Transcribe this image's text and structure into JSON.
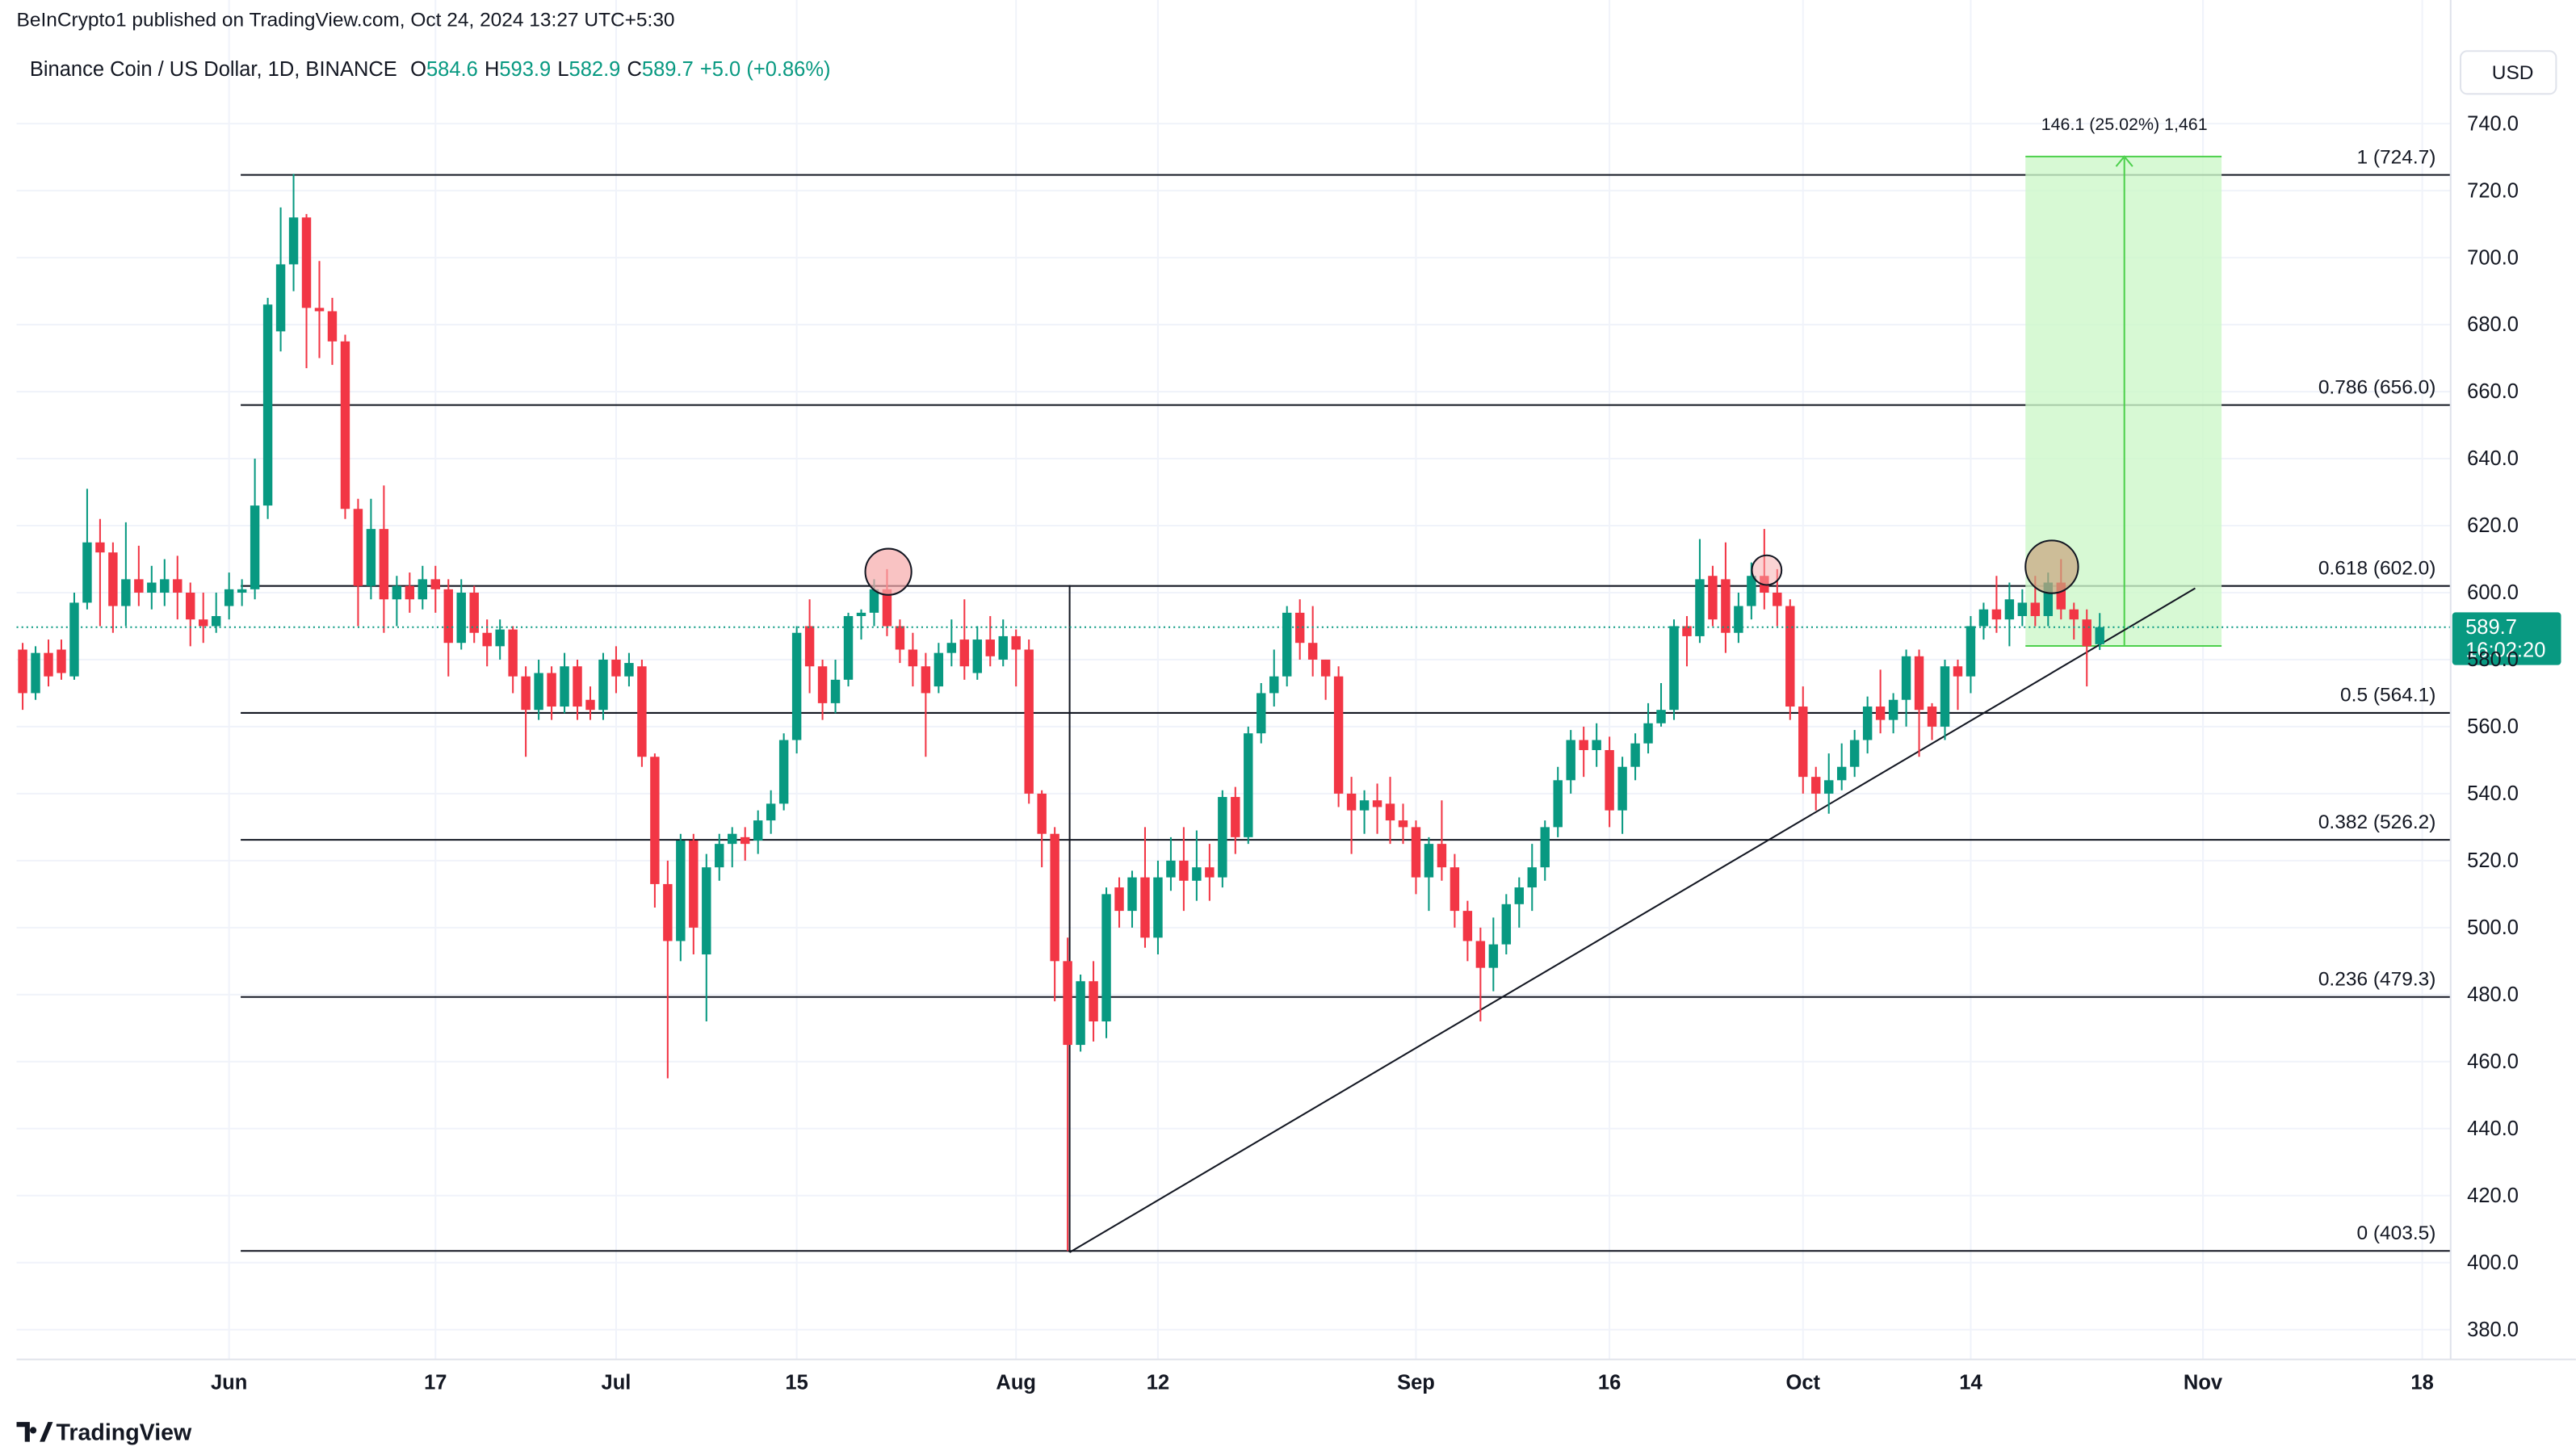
{
  "header": {
    "publisher": "BeInCrypto1 published on TradingView.com, Oct 24, 2024 13:27 UTC+5:30",
    "brand": "TradingView"
  },
  "chart_data": {
    "type": "candlestick",
    "title": "Binance Coin / US Dollar, 1D, BINANCE",
    "ohlc_header": [
      {
        "key": "O",
        "value": "584.6"
      },
      {
        "key": "H",
        "value": "593.9"
      },
      {
        "key": "L",
        "value": "582.9"
      },
      {
        "key": "C",
        "value": "589.7"
      }
    ],
    "change": "+5.0 (+0.86%)",
    "currency": "USD",
    "up_color": "#089981",
    "down_color": "#f23645",
    "ohlc": [
      [
        583,
        585,
        565,
        570
      ],
      [
        570,
        584,
        568,
        582
      ],
      [
        582,
        586,
        572,
        575
      ],
      [
        583,
        586,
        574,
        576
      ],
      [
        575,
        600,
        574,
        597
      ],
      [
        597,
        631,
        595,
        615
      ],
      [
        615,
        622,
        590,
        612
      ],
      [
        612,
        615,
        588,
        596
      ],
      [
        596,
        621,
        590,
        604
      ],
      [
        604,
        614,
        596,
        600
      ],
      [
        600,
        608,
        595,
        603
      ],
      [
        600,
        610,
        596,
        604
      ],
      [
        604,
        611,
        592,
        600
      ],
      [
        600,
        603,
        584,
        592
      ],
      [
        592,
        600,
        585,
        590
      ],
      [
        590,
        600,
        588,
        593
      ],
      [
        596,
        606,
        592,
        601
      ],
      [
        600,
        604,
        596,
        601
      ],
      [
        601,
        640,
        598,
        626
      ],
      [
        626,
        688,
        622,
        686
      ],
      [
        678,
        715,
        672,
        698
      ],
      [
        698,
        725,
        690,
        712
      ],
      [
        712,
        713,
        667,
        685
      ],
      [
        685,
        699,
        670,
        684
      ],
      [
        684,
        688,
        668,
        675
      ],
      [
        675,
        677,
        622,
        625
      ],
      [
        625,
        628,
        590,
        602
      ],
      [
        602,
        628,
        598,
        619
      ],
      [
        619,
        632,
        588,
        598
      ],
      [
        598,
        605,
        590,
        602
      ],
      [
        602,
        606,
        594,
        598
      ],
      [
        598,
        608,
        595,
        604
      ],
      [
        604,
        608,
        594,
        601
      ],
      [
        601,
        604,
        575,
        585
      ],
      [
        585,
        604,
        583,
        600
      ],
      [
        600,
        602,
        585,
        588
      ],
      [
        588,
        592,
        578,
        584
      ],
      [
        584,
        592,
        580,
        589
      ],
      [
        589,
        590,
        570,
        575
      ],
      [
        575,
        578,
        551,
        565
      ],
      [
        565,
        580,
        562,
        576
      ],
      [
        576,
        578,
        562,
        566
      ],
      [
        566,
        582,
        564,
        578
      ],
      [
        578,
        580,
        562,
        566
      ],
      [
        568,
        572,
        562,
        565
      ],
      [
        565,
        582,
        562,
        580
      ],
      [
        580,
        584,
        570,
        575
      ],
      [
        575,
        582,
        572,
        579
      ],
      [
        578,
        580,
        548,
        551
      ],
      [
        551,
        552,
        506,
        513
      ],
      [
        513,
        520,
        455,
        496
      ],
      [
        496,
        528,
        490,
        526
      ],
      [
        526,
        528,
        492,
        500
      ],
      [
        492,
        522,
        472,
        518
      ],
      [
        518,
        528,
        514,
        525
      ],
      [
        525,
        530,
        518,
        528
      ],
      [
        527,
        530,
        520,
        525
      ],
      [
        526,
        535,
        522,
        532
      ],
      [
        532,
        541,
        528,
        537
      ],
      [
        537,
        558,
        535,
        556
      ],
      [
        556,
        590,
        552,
        588
      ],
      [
        590,
        598,
        570,
        578
      ],
      [
        578,
        580,
        562,
        567
      ],
      [
        567,
        580,
        564,
        574
      ],
      [
        574,
        594,
        572,
        593
      ],
      [
        593,
        595,
        586,
        594
      ],
      [
        594,
        604,
        590,
        601
      ],
      [
        601,
        607,
        587,
        590
      ],
      [
        590,
        592,
        579,
        583
      ],
      [
        583,
        588,
        572,
        578
      ],
      [
        578,
        582,
        551,
        570
      ],
      [
        572,
        585,
        570,
        582
      ],
      [
        582,
        592,
        578,
        585
      ],
      [
        586,
        598,
        574,
        578
      ],
      [
        576,
        590,
        574,
        586
      ],
      [
        586,
        593,
        578,
        581
      ],
      [
        580,
        592,
        578,
        587
      ],
      [
        587,
        589,
        572,
        583
      ],
      [
        583,
        586,
        537,
        540
      ],
      [
        540,
        541,
        518,
        528
      ],
      [
        528,
        530,
        478,
        490
      ],
      [
        490,
        497,
        403.5,
        465
      ],
      [
        465,
        486,
        463,
        484
      ],
      [
        484,
        490,
        466,
        472
      ],
      [
        472,
        512,
        467,
        510
      ],
      [
        512,
        515,
        500,
        505
      ],
      [
        505,
        517,
        500,
        515
      ],
      [
        515,
        530,
        494,
        497
      ],
      [
        497,
        520,
        492,
        515
      ],
      [
        515,
        527,
        511,
        520
      ],
      [
        520,
        530,
        505,
        514
      ],
      [
        514,
        529,
        508,
        518
      ],
      [
        518,
        525,
        508,
        515
      ],
      [
        515,
        541,
        512,
        539
      ],
      [
        539,
        542,
        522,
        527
      ],
      [
        527,
        560,
        525,
        558
      ],
      [
        558,
        573,
        555,
        570
      ],
      [
        570,
        583,
        566,
        575
      ],
      [
        575,
        596,
        572,
        594
      ],
      [
        594,
        598,
        580,
        585
      ],
      [
        585,
        596,
        575,
        580
      ],
      [
        580,
        580,
        568,
        575
      ],
      [
        575,
        578,
        536,
        540
      ],
      [
        540,
        545,
        522,
        535
      ],
      [
        535,
        541,
        528,
        538
      ],
      [
        538,
        543,
        528,
        536
      ],
      [
        537,
        545,
        525,
        532
      ],
      [
        532,
        537,
        525,
        530
      ],
      [
        530,
        532,
        510,
        515
      ],
      [
        515,
        527,
        505,
        525
      ],
      [
        525,
        538,
        514,
        518
      ],
      [
        518,
        522,
        500,
        505
      ],
      [
        505,
        508,
        490,
        496
      ],
      [
        496,
        500,
        472,
        488
      ],
      [
        488,
        503,
        481,
        495
      ],
      [
        495,
        510,
        492,
        507
      ],
      [
        507,
        515,
        500,
        512
      ],
      [
        512,
        525,
        505,
        518
      ],
      [
        518,
        532,
        514,
        530
      ],
      [
        530,
        548,
        527,
        544
      ],
      [
        544,
        559,
        540,
        556
      ],
      [
        556,
        560,
        545,
        553
      ],
      [
        553,
        561,
        548,
        556
      ],
      [
        553,
        557,
        530,
        535
      ],
      [
        535,
        551,
        528,
        548
      ],
      [
        548,
        558,
        544,
        555
      ],
      [
        555,
        567,
        552,
        561
      ],
      [
        561,
        573,
        560,
        565
      ],
      [
        565,
        592,
        562,
        590
      ],
      [
        590,
        593,
        578,
        587
      ],
      [
        587,
        616,
        585,
        604
      ],
      [
        605,
        608,
        590,
        592
      ],
      [
        604,
        615,
        582,
        588
      ],
      [
        588,
        600,
        585,
        596
      ],
      [
        596,
        609,
        592,
        605
      ],
      [
        605,
        619,
        595,
        600
      ],
      [
        600,
        607,
        590,
        596
      ],
      [
        596,
        598,
        562,
        566
      ],
      [
        566,
        572,
        540,
        545
      ],
      [
        545,
        548,
        535,
        540
      ],
      [
        540,
        552,
        534,
        544
      ],
      [
        544,
        555,
        541,
        548
      ],
      [
        548,
        559,
        545,
        556
      ],
      [
        556,
        569,
        552,
        566
      ],
      [
        566,
        577,
        558,
        562
      ],
      [
        562,
        570,
        558,
        568
      ],
      [
        568,
        583,
        560,
        581
      ],
      [
        581,
        583,
        551,
        565
      ],
      [
        566,
        567,
        556,
        560
      ],
      [
        560,
        580,
        556,
        578
      ],
      [
        578,
        580,
        565,
        575
      ],
      [
        575,
        593,
        570,
        590
      ],
      [
        590,
        597,
        586,
        595
      ],
      [
        595,
        605,
        588,
        592
      ],
      [
        592,
        603,
        584,
        598
      ],
      [
        593,
        601,
        590,
        597
      ],
      [
        597,
        605,
        590,
        593
      ],
      [
        593,
        606,
        590,
        603
      ],
      [
        603,
        610,
        592,
        595
      ],
      [
        595,
        597,
        586,
        592
      ],
      [
        592,
        595,
        572,
        584
      ],
      [
        584.6,
        593.9,
        582.9,
        589.7
      ]
    ],
    "xlim": [
      -0.47,
      188.2
    ],
    "xticks": [
      {
        "value": 16,
        "label": "Jun"
      },
      {
        "value": 32,
        "label": "17"
      },
      {
        "value": 46,
        "label": "Jul"
      },
      {
        "value": 60,
        "label": "15"
      },
      {
        "value": 77,
        "label": "Aug"
      },
      {
        "value": 88,
        "label": "12"
      },
      {
        "value": 108,
        "label": "Sep"
      },
      {
        "value": 123,
        "label": "16"
      },
      {
        "value": 138,
        "label": "Oct"
      },
      {
        "value": 151,
        "label": "14"
      },
      {
        "value": 169,
        "label": "Nov"
      },
      {
        "value": 186,
        "label": "18"
      }
    ],
    "ylim": [
      371.1,
      747.4
    ],
    "yticks": [
      {
        "value": 380,
        "label": "380.0"
      },
      {
        "value": 400,
        "label": "400.0"
      },
      {
        "value": 420,
        "label": "420.0"
      },
      {
        "value": 440,
        "label": "440.0"
      },
      {
        "value": 460,
        "label": "460.0"
      },
      {
        "value": 480,
        "label": "480.0"
      },
      {
        "value": 500,
        "label": "500.0"
      },
      {
        "value": 520,
        "label": "520.0"
      },
      {
        "value": 540,
        "label": "540.0"
      },
      {
        "value": 560,
        "label": "560.0"
      },
      {
        "value": 580,
        "label": "580.0"
      },
      {
        "value": 600,
        "label": "600.0"
      },
      {
        "value": 620,
        "label": "620.0"
      },
      {
        "value": 640,
        "label": "640.0"
      },
      {
        "value": 660,
        "label": "660.0"
      },
      {
        "value": 680,
        "label": "680.0"
      },
      {
        "value": 700,
        "label": "700.0"
      },
      {
        "value": 720,
        "label": "720.0"
      },
      {
        "value": 740,
        "label": "740.0"
      }
    ],
    "grid": true,
    "fib_levels": [
      {
        "value": 724.7,
        "label": "1 (724.7)"
      },
      {
        "value": 656.0,
        "label": "0.786 (656.0)"
      },
      {
        "value": 602.0,
        "label": "0.618 (602.0)"
      },
      {
        "value": 564.1,
        "label": "0.5 (564.1)"
      },
      {
        "value": 526.2,
        "label": "0.382 (526.2)"
      },
      {
        "value": 479.3,
        "label": "0.236 (479.3)"
      },
      {
        "value": 403.5,
        "label": "0 (403.5)"
      }
    ],
    "measure_label": "146.1 (25.02%) 1,461",
    "last_price": 589.7,
    "countdown": "16:02:20"
  }
}
